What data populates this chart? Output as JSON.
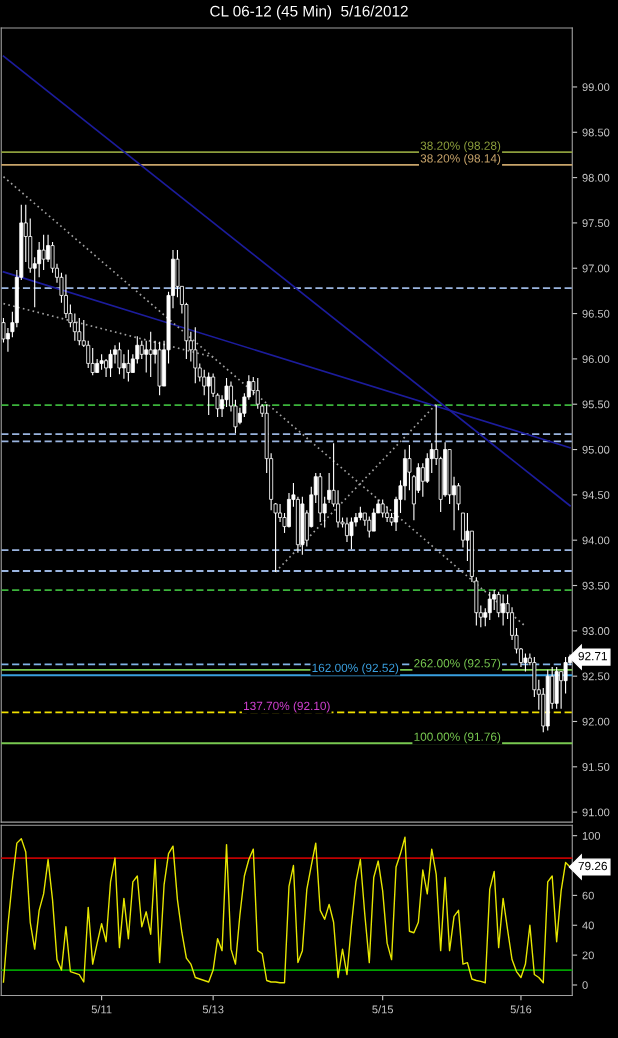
{
  "chart_data": [
    {
      "type": "candlestick",
      "title": "CL 06-12 (45 Min)  5/16/2012",
      "categories": [
        null,
        null,
        null,
        null,
        null,
        null,
        null,
        null,
        null,
        null,
        null,
        null,
        null,
        null,
        null,
        null,
        null,
        null,
        null,
        null,
        null,
        null,
        null,
        null,
        null,
        null,
        null,
        null,
        null,
        null,
        null,
        null,
        null,
        null,
        null,
        null,
        null,
        null,
        null,
        null,
        null,
        null,
        null,
        null,
        null,
        null,
        null,
        null,
        null,
        null,
        null,
        null,
        null,
        null,
        null,
        null,
        null,
        null,
        null,
        null,
        null,
        null,
        null,
        null,
        null,
        null,
        null,
        null,
        null,
        null,
        null,
        null,
        null,
        null,
        null,
        null,
        null,
        null,
        null,
        null,
        null,
        null,
        null,
        null,
        null,
        null,
        null,
        null,
        null,
        null,
        null,
        null,
        null,
        null,
        null,
        null,
        null,
        null,
        null,
        null,
        null,
        null,
        null,
        null,
        null,
        null,
        null,
        null,
        null,
        null,
        null,
        null,
        null,
        null,
        null,
        null,
        null,
        null,
        null,
        null,
        null,
        null,
        null,
        null,
        null,
        null,
        null,
        null
      ],
      "ohlc": [
        [
          96.4,
          96.45,
          96.18,
          96.22
        ],
        [
          96.22,
          96.34,
          96.08,
          96.28
        ],
        [
          96.3,
          96.52,
          96.24,
          96.4
        ],
        [
          96.4,
          96.98,
          96.35,
          96.9
        ],
        [
          96.9,
          97.7,
          96.87,
          97.5
        ],
        [
          97.5,
          97.7,
          97.07,
          97.35
        ],
        [
          97.35,
          97.55,
          96.95,
          97.0
        ],
        [
          97.0,
          97.12,
          96.57,
          97.05
        ],
        [
          97.05,
          97.29,
          96.9,
          97.2
        ],
        [
          97.2,
          97.37,
          96.98,
          97.1
        ],
        [
          97.1,
          97.37,
          97.07,
          97.25
        ],
        [
          97.25,
          97.29,
          96.95,
          97.0
        ],
        [
          97.0,
          97.05,
          96.84,
          96.9
        ],
        [
          96.9,
          96.95,
          96.62,
          96.7
        ],
        [
          96.7,
          96.93,
          96.45,
          96.5
        ],
        [
          96.5,
          96.6,
          96.35,
          96.4
        ],
        [
          96.4,
          96.5,
          96.2,
          96.3
        ],
        [
          96.3,
          96.45,
          96.15,
          96.2
        ],
        [
          96.2,
          96.43,
          96.13,
          96.15
        ],
        [
          96.15,
          96.2,
          95.9,
          95.95
        ],
        [
          95.95,
          96.12,
          95.82,
          95.85
        ],
        [
          95.85,
          96.0,
          95.85,
          95.95
        ],
        [
          95.95,
          96.05,
          95.88,
          95.98
        ],
        [
          95.98,
          96.0,
          95.8,
          95.9
        ],
        [
          95.9,
          96.1,
          95.8,
          96.05
        ],
        [
          96.05,
          96.15,
          95.95,
          96.1
        ],
        [
          96.1,
          96.18,
          95.83,
          95.9
        ],
        [
          95.9,
          96.05,
          95.78,
          95.95
        ],
        [
          95.95,
          96.1,
          95.75,
          95.85
        ],
        [
          95.85,
          96.05,
          95.85,
          96.0
        ],
        [
          96.0,
          96.25,
          95.95,
          96.15
        ],
        [
          96.15,
          96.2,
          96.0,
          96.05
        ],
        [
          96.05,
          96.2,
          95.85,
          96.1
        ],
        [
          96.1,
          96.3,
          95.8,
          96.05
        ],
        [
          96.05,
          96.2,
          95.95,
          96.1
        ],
        [
          96.1,
          96.19,
          95.6,
          95.7
        ],
        [
          95.7,
          96.2,
          95.7,
          96.1
        ],
        [
          96.1,
          96.74,
          95.95,
          96.7
        ],
        [
          96.7,
          97.2,
          96.56,
          97.1
        ],
        [
          97.1,
          97.2,
          96.68,
          96.8
        ],
        [
          96.8,
          96.8,
          96.5,
          96.6
        ],
        [
          96.6,
          96.62,
          96.0,
          96.2
        ],
        [
          96.2,
          96.3,
          95.97,
          96.1
        ],
        [
          96.1,
          96.35,
          95.73,
          95.9
        ],
        [
          95.9,
          95.95,
          95.75,
          95.8
        ],
        [
          95.8,
          95.88,
          95.6,
          95.7
        ],
        [
          95.7,
          95.85,
          95.38,
          95.8
        ],
        [
          95.8,
          95.84,
          95.58,
          95.62
        ],
        [
          95.6,
          95.62,
          95.36,
          95.45
        ],
        [
          95.45,
          95.6,
          95.36,
          95.55
        ],
        [
          95.55,
          95.79,
          95.47,
          95.7
        ],
        [
          95.7,
          95.75,
          95.42,
          95.48
        ],
        [
          95.48,
          95.55,
          95.18,
          95.25
        ],
        [
          95.3,
          95.46,
          95.28,
          95.4
        ],
        [
          95.4,
          95.62,
          95.36,
          95.58
        ],
        [
          95.58,
          95.82,
          95.55,
          95.75
        ],
        [
          95.75,
          95.8,
          95.6,
          95.65
        ],
        [
          95.65,
          95.79,
          95.45,
          95.5
        ],
        [
          95.48,
          95.5,
          95.36,
          95.4
        ],
        [
          95.4,
          95.5,
          94.74,
          94.9
        ],
        [
          94.9,
          94.96,
          94.33,
          94.45
        ],
        [
          94.4,
          94.41,
          93.65,
          94.3
        ],
        [
          94.3,
          94.4,
          94.2,
          94.25
        ],
        [
          94.25,
          94.3,
          94.08,
          94.15
        ],
        [
          94.15,
          94.52,
          94.14,
          94.45
        ],
        [
          94.45,
          94.63,
          94.37,
          94.5
        ],
        [
          94.45,
          94.48,
          93.86,
          93.95
        ],
        [
          93.95,
          94.48,
          93.84,
          94.4
        ],
        [
          94.3,
          94.33,
          93.93,
          94.0
        ],
        [
          94.15,
          94.59,
          94.14,
          94.5
        ],
        [
          94.5,
          94.74,
          94.41,
          94.7
        ],
        [
          94.7,
          94.74,
          94.2,
          94.3
        ],
        [
          94.3,
          94.48,
          94.14,
          94.4
        ],
        [
          94.45,
          94.74,
          94.41,
          94.55
        ],
        [
          94.55,
          95.07,
          94.37,
          94.4
        ],
        [
          94.4,
          94.55,
          94.14,
          94.2
        ],
        [
          94.2,
          94.25,
          94.14,
          94.18
        ],
        [
          94.18,
          94.25,
          93.98,
          94.05
        ],
        [
          94.05,
          94.25,
          93.9,
          94.2
        ],
        [
          94.2,
          94.3,
          94.15,
          94.25
        ],
        [
          94.25,
          94.37,
          94.22,
          94.3
        ],
        [
          94.3,
          94.3,
          94.16,
          94.22
        ],
        [
          94.22,
          94.26,
          94.03,
          94.1
        ],
        [
          94.1,
          94.35,
          94.1,
          94.3
        ],
        [
          94.3,
          94.45,
          94.3,
          94.4
        ],
        [
          94.4,
          94.45,
          94.25,
          94.3
        ],
        [
          94.3,
          94.37,
          94.2,
          94.25
        ],
        [
          94.25,
          94.3,
          94.16,
          94.2
        ],
        [
          94.2,
          94.48,
          94.1,
          94.45
        ],
        [
          94.45,
          94.66,
          94.3,
          94.6
        ],
        [
          94.6,
          95.0,
          94.44,
          94.9
        ],
        [
          94.9,
          95.05,
          94.55,
          94.75
        ],
        [
          94.7,
          94.72,
          94.22,
          94.4
        ],
        [
          94.55,
          94.85,
          94.52,
          94.8
        ],
        [
          94.8,
          94.85,
          94.48,
          94.65
        ],
        [
          94.65,
          94.96,
          94.63,
          94.9
        ],
        [
          94.9,
          95.07,
          94.74,
          95.0
        ],
        [
          95.0,
          95.49,
          94.83,
          94.9
        ],
        [
          94.9,
          94.92,
          94.31,
          94.45
        ],
        [
          94.5,
          95.08,
          94.48,
          95.0
        ],
        [
          95.0,
          95.0,
          94.4,
          94.5
        ],
        [
          94.5,
          94.7,
          94.11,
          94.6
        ],
        [
          94.6,
          94.63,
          94.33,
          94.4
        ],
        [
          94.3,
          94.3,
          93.92,
          94.0
        ],
        [
          94.0,
          94.3,
          93.77,
          94.1
        ],
        [
          94.1,
          94.1,
          93.54,
          93.6
        ],
        [
          93.55,
          93.59,
          93.06,
          93.2
        ],
        [
          93.2,
          93.28,
          93.04,
          93.15
        ],
        [
          93.15,
          93.25,
          93.05,
          93.2
        ],
        [
          93.2,
          93.43,
          93.12,
          93.35
        ],
        [
          93.35,
          93.45,
          93.23,
          93.4
        ],
        [
          93.4,
          93.43,
          93.15,
          93.2
        ],
        [
          93.2,
          93.4,
          93.06,
          93.3
        ],
        [
          93.3,
          93.4,
          93.13,
          93.2
        ],
        [
          93.2,
          93.26,
          92.9,
          92.95
        ],
        [
          92.95,
          93.03,
          92.75,
          92.8
        ],
        [
          92.8,
          92.81,
          92.6,
          92.65
        ],
        [
          92.65,
          92.75,
          92.55,
          92.7
        ],
        [
          92.7,
          92.75,
          92.62,
          92.65
        ],
        [
          92.65,
          92.71,
          92.27,
          92.35
        ],
        [
          92.35,
          92.46,
          92.13,
          92.3
        ],
        [
          92.3,
          92.37,
          91.88,
          91.95
        ],
        [
          91.95,
          92.57,
          91.9,
          92.5
        ],
        [
          92.5,
          92.6,
          92.14,
          92.2
        ],
        [
          92.2,
          92.6,
          92.14,
          92.55
        ],
        [
          92.55,
          92.55,
          92.14,
          92.45
        ],
        [
          92.45,
          92.71,
          92.31,
          92.65
        ],
        [
          92.65,
          92.74,
          92.62,
          92.71
        ]
      ],
      "series": [
        {
          "type": "line",
          "color": "#1c1c9c",
          "line_style": "solid",
          "values": [
            99.34,
            null,
            null,
            null,
            null,
            null,
            null,
            null,
            null,
            null,
            null,
            null,
            null,
            null,
            null,
            null,
            null,
            null,
            null,
            null,
            null,
            null,
            null,
            null,
            null,
            null,
            null,
            null,
            null,
            null,
            null,
            null,
            null,
            null,
            null,
            null,
            null,
            null,
            null,
            null,
            null,
            null,
            null,
            null,
            null,
            null,
            null,
            null,
            null,
            null,
            null,
            null,
            null,
            null,
            null,
            null,
            null,
            null,
            null,
            null,
            null,
            null,
            null,
            null,
            null,
            null,
            null,
            null,
            null,
            null,
            null,
            null,
            null,
            null,
            null,
            null,
            null,
            null,
            null,
            null,
            null,
            null,
            null,
            null,
            null,
            null,
            null,
            null,
            null,
            null,
            null,
            null,
            null,
            null,
            null,
            null,
            null,
            null,
            null,
            null,
            null,
            null,
            null,
            null,
            null,
            null,
            null,
            null,
            null,
            null,
            null,
            null,
            null,
            null,
            null,
            null,
            null,
            null,
            null,
            null,
            null,
            null,
            null,
            null,
            null,
            null,
            null,
            94.38
          ]
        },
        {
          "type": "line",
          "color": "#1c1c9c",
          "line_style": "solid",
          "values": [
            96.96,
            null,
            null,
            null,
            null,
            null,
            null,
            null,
            null,
            null,
            null,
            null,
            null,
            null,
            null,
            null,
            null,
            null,
            null,
            null,
            null,
            null,
            null,
            null,
            null,
            null,
            null,
            null,
            null,
            null,
            null,
            null,
            null,
            null,
            null,
            null,
            null,
            null,
            null,
            null,
            null,
            null,
            null,
            null,
            null,
            null,
            null,
            null,
            null,
            null,
            null,
            null,
            null,
            null,
            null,
            null,
            null,
            null,
            null,
            null,
            null,
            null,
            null,
            null,
            null,
            null,
            null,
            null,
            null,
            null,
            null,
            null,
            null,
            null,
            null,
            null,
            null,
            null,
            null,
            null,
            null,
            null,
            null,
            null,
            null,
            null,
            null,
            null,
            null,
            null,
            null,
            null,
            null,
            null,
            null,
            null,
            null,
            null,
            null,
            null,
            null,
            null,
            null,
            null,
            null,
            null,
            null,
            null,
            null,
            null,
            null,
            null,
            null,
            null,
            null,
            null,
            null,
            null,
            null,
            null,
            null,
            null,
            null,
            null,
            null,
            null,
            null,
            95.02
          ]
        },
        {
          "type": "line",
          "color": "#a0a0a0",
          "line_style": "dotted",
          "values": [
            98.01,
            null,
            null,
            null,
            null,
            null,
            null,
            null,
            null,
            null,
            null,
            null,
            null,
            null,
            null,
            null,
            null,
            null,
            null,
            null,
            null,
            null,
            null,
            null,
            null,
            null,
            null,
            null,
            null,
            null,
            null,
            null,
            null,
            null,
            null,
            null,
            null,
            null,
            null,
            null,
            null,
            null,
            null,
            null,
            null,
            null,
            null,
            null,
            null,
            null,
            null,
            null,
            null,
            null,
            null,
            null,
            null,
            null,
            null,
            null,
            null,
            null,
            null,
            null,
            null,
            null,
            null,
            null,
            null,
            null,
            null,
            null,
            null,
            null,
            null,
            null,
            null,
            null,
            null,
            null,
            null,
            null,
            null,
            null,
            null,
            null,
            null,
            null,
            null,
            null,
            null,
            null,
            null,
            null,
            null,
            null,
            null,
            null,
            null,
            null,
            null,
            null,
            null,
            null,
            null,
            null,
            null,
            null,
            null,
            null,
            null,
            null,
            null,
            null,
            null,
            null,
            null,
            93.05,
            null,
            null,
            null,
            null,
            null,
            null,
            null,
            null,
            null,
            null
          ]
        },
        {
          "type": "line",
          "color": "#a0a0a0",
          "line_style": "dotted",
          "values": [
            96.61,
            null,
            null,
            null,
            null,
            null,
            null,
            null,
            null,
            null,
            null,
            null,
            null,
            null,
            null,
            null,
            null,
            null,
            null,
            null,
            null,
            null,
            null,
            null,
            null,
            null,
            null,
            null,
            null,
            null,
            null,
            null,
            null,
            null,
            null,
            null,
            null,
            null,
            null,
            null,
            null,
            null,
            null,
            null,
            null,
            null,
            null,
            96.02,
            null,
            null,
            null,
            null,
            null,
            null,
            null,
            null,
            null,
            null,
            null,
            null,
            null,
            null,
            null,
            null,
            null,
            null,
            null,
            null,
            null,
            null,
            null,
            null,
            null,
            null,
            null,
            null,
            null,
            null,
            null,
            null,
            null,
            null,
            null,
            null,
            null,
            null,
            null,
            null,
            null,
            null,
            null,
            null,
            null,
            null,
            null,
            null,
            null,
            null,
            null,
            null,
            null,
            null,
            null,
            null,
            null,
            null,
            null,
            null,
            null,
            null,
            null,
            null,
            null,
            null,
            null,
            null,
            null,
            null,
            null,
            null,
            null,
            null,
            null,
            null,
            null,
            null,
            null,
            null
          ]
        },
        {
          "type": "line",
          "color": "#a0a0a0",
          "line_style": "dotted",
          "values": [
            null,
            null,
            null,
            null,
            null,
            null,
            null,
            null,
            null,
            null,
            null,
            null,
            null,
            null,
            null,
            null,
            null,
            null,
            null,
            null,
            null,
            null,
            null,
            null,
            null,
            null,
            null,
            null,
            null,
            null,
            null,
            null,
            null,
            null,
            null,
            null,
            null,
            null,
            null,
            null,
            null,
            null,
            null,
            null,
            null,
            null,
            null,
            null,
            null,
            null,
            null,
            null,
            null,
            null,
            null,
            null,
            null,
            null,
            null,
            null,
            null,
            93.65,
            null,
            null,
            null,
            null,
            null,
            null,
            null,
            null,
            null,
            null,
            null,
            null,
            null,
            null,
            null,
            null,
            null,
            null,
            null,
            null,
            null,
            null,
            null,
            null,
            null,
            null,
            null,
            null,
            null,
            null,
            null,
            null,
            null,
            null,
            null,
            95.5,
            null,
            null,
            null,
            null,
            null,
            null,
            null,
            null,
            null,
            null,
            null,
            null,
            null,
            null,
            null,
            null,
            null,
            null,
            null,
            null,
            null,
            null,
            null,
            null,
            null,
            null,
            null,
            null,
            null,
            null
          ]
        }
      ],
      "ref_lines": [
        {
          "axis": "y",
          "value": 98.28,
          "label": "38.20% (98.28)",
          "color": "#8c9e3c",
          "line_style": "solid"
        },
        {
          "axis": "y",
          "value": 98.14,
          "label": "38.20% (98.14)",
          "color": "#c8a46a",
          "line_style": "solid"
        },
        {
          "axis": "y",
          "value": 96.78,
          "color": "#9bb5e0",
          "line_style": "dashed"
        },
        {
          "axis": "y",
          "value": 95.49,
          "color": "#3cb43c",
          "line_style": "dashed"
        },
        {
          "axis": "y",
          "value": 95.17,
          "color": "#9bb5e0",
          "line_style": "dashed"
        },
        {
          "axis": "y",
          "value": 95.09,
          "color": "#9bb5e0",
          "line_style": "dashed"
        },
        {
          "axis": "y",
          "value": 93.89,
          "color": "#9bb5e0",
          "line_style": "dashed"
        },
        {
          "axis": "y",
          "value": 93.66,
          "color": "#9bb5e0",
          "line_style": "dashed"
        },
        {
          "axis": "y",
          "value": 93.45,
          "color": "#3cb43c",
          "line_style": "dashed"
        },
        {
          "axis": "y",
          "value": 92.63,
          "color": "#80b4e8",
          "line_style": "dashed"
        },
        {
          "axis": "y",
          "value": 92.57,
          "label": "262.00% (92.57)",
          "color": "#78c850",
          "line_style": "solid"
        },
        {
          "axis": "y",
          "value": 92.51,
          "color": "#3aa0e0",
          "line_style": "solid"
        },
        {
          "axis": "y",
          "value": 92.1,
          "color": "#f0e000",
          "line_style": "dashed"
        },
        {
          "axis": "y",
          "value": 91.76,
          "label": "100.00% (91.76)",
          "color": "#78c850",
          "line_style": "solid"
        }
      ],
      "annotations": [
        {
          "text": "137.70% (92.10)",
          "y": 92.1
        },
        {
          "text": "162.00% (92.52)",
          "y": 92.52
        },
        "92.71"
      ],
      "ylim": [
        90.89,
        99.65
      ],
      "tick_labels": "y",
      "yticks": [
        {
          "value": 91,
          "label": "91.00"
        },
        {
          "value": 91.5,
          "label": "91.50"
        },
        {
          "value": 92,
          "label": "92.00"
        },
        {
          "value": 92.5,
          "label": "92.50"
        },
        {
          "value": 93,
          "label": "93.00"
        },
        {
          "value": 93.5,
          "label": "93.50"
        },
        {
          "value": 94,
          "label": "94.00"
        },
        {
          "value": 94.5,
          "label": "94.50"
        },
        {
          "value": 95,
          "label": "95.00"
        },
        {
          "value": 95.5,
          "label": "95.50"
        },
        {
          "value": 96,
          "label": "96.00"
        },
        {
          "value": 96.5,
          "label": "96.50"
        },
        {
          "value": 97,
          "label": "97.00"
        },
        {
          "value": 97.5,
          "label": "97.50"
        },
        {
          "value": 98,
          "label": "98.00"
        },
        {
          "value": 98.5,
          "label": "98.50"
        },
        {
          "value": 99,
          "label": "99.00"
        }
      ]
    },
    {
      "type": "line",
      "categories": [
        null,
        null,
        null,
        null,
        null,
        null,
        null,
        null,
        null,
        null,
        null,
        null,
        null,
        null,
        null,
        null,
        null,
        null,
        null,
        null,
        null,
        null,
        "5/11",
        null,
        null,
        null,
        null,
        null,
        null,
        null,
        null,
        null,
        null,
        null,
        null,
        null,
        null,
        null,
        null,
        null,
        null,
        null,
        null,
        null,
        null,
        null,
        null,
        "5/13",
        null,
        null,
        null,
        null,
        null,
        null,
        null,
        null,
        null,
        null,
        null,
        null,
        null,
        null,
        null,
        null,
        null,
        null,
        null,
        null,
        null,
        null,
        null,
        null,
        null,
        null,
        null,
        null,
        null,
        null,
        null,
        null,
        null,
        null,
        null,
        null,
        null,
        "5/15",
        null,
        null,
        null,
        null,
        null,
        null,
        null,
        null,
        null,
        null,
        null,
        null,
        null,
        null,
        null,
        null,
        null,
        null,
        null,
        null,
        null,
        null,
        null,
        null,
        null,
        null,
        null,
        null,
        null,
        null,
        "5/16",
        null,
        null,
        null,
        null,
        null,
        null,
        null,
        null,
        null,
        null,
        null
      ],
      "series": [
        {
          "color": "#e6e600",
          "values": [
            2,
            40,
            70,
            95,
            98,
            89,
            42,
            24,
            50,
            61,
            84,
            57,
            17,
            10,
            39,
            9,
            8,
            7,
            2,
            52,
            14,
            28,
            41,
            29,
            69,
            85,
            25,
            58,
            31,
            69,
            73,
            39,
            49,
            34,
            84,
            15,
            67,
            88,
            93,
            57,
            35,
            18,
            14,
            5,
            4,
            3,
            2,
            10,
            31,
            23,
            94,
            24,
            14,
            47,
            73,
            84,
            91,
            23,
            21,
            3,
            2,
            2,
            1.5,
            1.5,
            66,
            80,
            15,
            23,
            64,
            80,
            95,
            50,
            44,
            54,
            42,
            5,
            24,
            7,
            40,
            69,
            84,
            47,
            15,
            72,
            83,
            63,
            28,
            17,
            79,
            88,
            99,
            36,
            35,
            42,
            77,
            61,
            91,
            74,
            23,
            72,
            23,
            46,
            50,
            14,
            15,
            4,
            3,
            2.4,
            1.5,
            64,
            76,
            25,
            58,
            37,
            17,
            9,
            5,
            14,
            40,
            7,
            5,
            1.5,
            69,
            73,
            29,
            63,
            82,
            79
          ]
        }
      ],
      "ref_lines": [
        {
          "axis": "y",
          "value": 85,
          "color": "#c00000",
          "line_style": "solid"
        },
        {
          "axis": "y",
          "value": 10,
          "color": "#00a000",
          "line_style": "solid"
        }
      ],
      "annotations": [
        "79.26"
      ],
      "ylim": [
        -7,
        107
      ],
      "yticks": [
        0,
        20,
        40,
        60,
        100
      ]
    }
  ]
}
